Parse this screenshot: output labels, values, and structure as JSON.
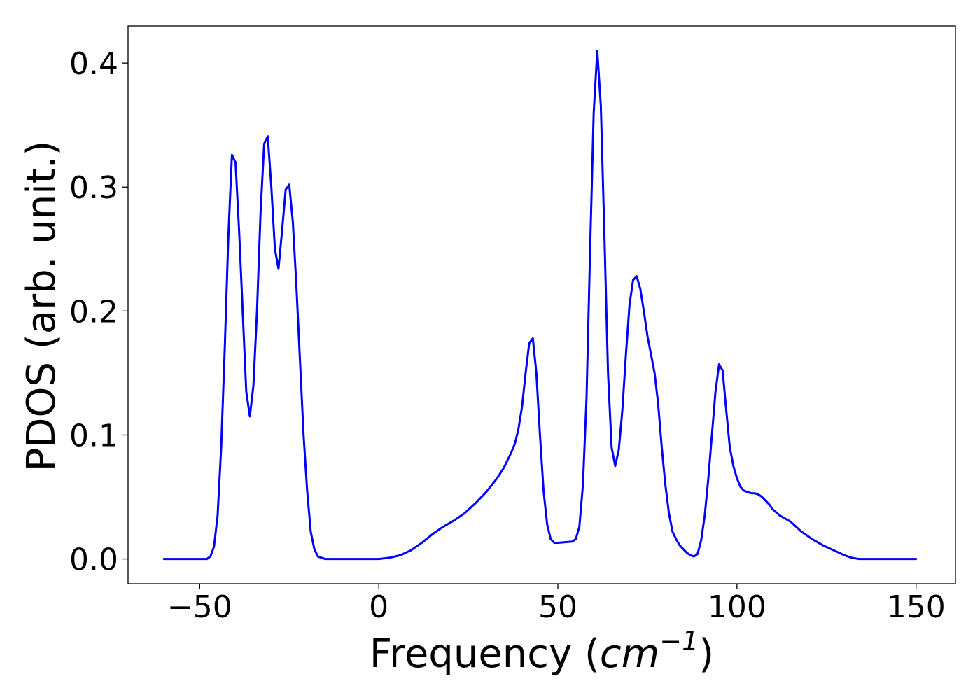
{
  "chart_data": {
    "type": "line",
    "title": "",
    "xlabel": "Frequency",
    "xlabel_unit_base": "cm",
    "xlabel_unit_exponent": "−1",
    "ylabel": "PDOS (arb. unit.)",
    "xlim": [
      -70,
      161
    ],
    "ylim": [
      -0.02,
      0.43
    ],
    "xticks": [
      -50,
      0,
      50,
      100,
      150
    ],
    "xtick_labels": [
      "−50",
      "0",
      "50",
      "100",
      "150"
    ],
    "yticks": [
      0.0,
      0.1,
      0.2,
      0.3,
      0.4
    ],
    "ytick_labels": [
      "0.0",
      "0.1",
      "0.2",
      "0.3",
      "0.4"
    ],
    "grid": false,
    "legend": "none",
    "series": [
      {
        "color": "#0000ff",
        "x": [
          -60,
          -55,
          -50,
          -48,
          -47,
          -46,
          -45,
          -44,
          -43,
          -42,
          -41,
          -40,
          -39,
          -38,
          -37,
          -36,
          -35,
          -34,
          -33,
          -32,
          -31,
          -30,
          -29,
          -28,
          -27,
          -26,
          -25,
          -24,
          -23,
          -22,
          -21,
          -20,
          -19,
          -18,
          -17,
          -16,
          -15,
          -14,
          -12,
          -10,
          -5,
          0,
          3,
          6,
          9,
          12,
          15,
          18,
          21,
          24,
          27,
          30,
          33,
          35,
          37,
          38,
          39,
          40,
          41,
          42,
          43,
          44,
          45,
          46,
          47,
          48,
          49,
          50,
          52,
          54,
          55,
          56,
          57,
          58,
          59,
          60,
          61,
          62,
          63,
          64,
          65,
          66,
          67,
          68,
          69,
          70,
          71,
          72,
          73,
          74,
          75,
          76,
          77,
          78,
          79,
          80,
          81,
          82,
          83,
          84,
          85,
          86,
          87,
          88,
          89,
          90,
          91,
          92,
          93,
          94,
          95,
          96,
          97,
          98,
          99,
          100,
          101,
          102,
          103,
          104,
          105,
          106,
          107,
          108,
          109,
          110,
          112,
          115,
          118,
          121,
          124,
          127,
          130,
          132,
          134,
          136,
          140,
          145,
          150
        ],
        "y": [
          0.0,
          0.0,
          0.0,
          0.0,
          0.002,
          0.01,
          0.035,
          0.09,
          0.17,
          0.26,
          0.326,
          0.32,
          0.265,
          0.2,
          0.135,
          0.115,
          0.14,
          0.2,
          0.28,
          0.335,
          0.341,
          0.3,
          0.25,
          0.234,
          0.265,
          0.298,
          0.302,
          0.272,
          0.22,
          0.16,
          0.1,
          0.055,
          0.022,
          0.008,
          0.002,
          0.001,
          0.0,
          0.0,
          0.0,
          0.0,
          0.0,
          0.0,
          0.001,
          0.003,
          0.007,
          0.013,
          0.02,
          0.026,
          0.031,
          0.037,
          0.045,
          0.054,
          0.065,
          0.074,
          0.086,
          0.093,
          0.105,
          0.123,
          0.15,
          0.174,
          0.178,
          0.15,
          0.1,
          0.055,
          0.028,
          0.016,
          0.013,
          0.013,
          0.0135,
          0.014,
          0.016,
          0.026,
          0.06,
          0.13,
          0.25,
          0.36,
          0.41,
          0.365,
          0.26,
          0.15,
          0.09,
          0.075,
          0.088,
          0.12,
          0.165,
          0.205,
          0.225,
          0.228,
          0.218,
          0.2,
          0.18,
          0.165,
          0.15,
          0.125,
          0.09,
          0.06,
          0.037,
          0.022,
          0.016,
          0.011,
          0.008,
          0.005,
          0.003,
          0.002,
          0.004,
          0.015,
          0.035,
          0.065,
          0.1,
          0.135,
          0.157,
          0.152,
          0.12,
          0.09,
          0.075,
          0.065,
          0.058,
          0.055,
          0.054,
          0.053,
          0.053,
          0.052,
          0.05,
          0.047,
          0.044,
          0.04,
          0.035,
          0.03,
          0.022,
          0.016,
          0.011,
          0.007,
          0.003,
          0.001,
          0.0,
          0.0,
          0.0,
          0.0,
          0.0
        ]
      }
    ]
  }
}
